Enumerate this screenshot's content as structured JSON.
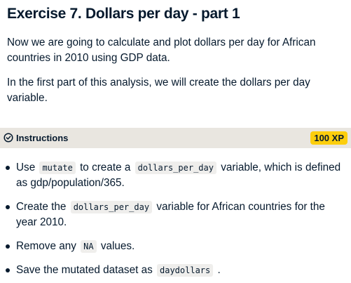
{
  "exercise": {
    "title": "Exercise 7. Dollars per day - part 1",
    "paragraphs": [
      "Now we are going to calculate and plot dollars per day for African countries in 2010 using GDP data.",
      "In the first part of this analysis, we will create the dollars per day variable."
    ]
  },
  "instructions": {
    "icon": "checkmark-circle-icon",
    "label": "Instructions",
    "xp": "100 XP",
    "badge_color": "#fcce0d",
    "bar_color": "#e9e6e0",
    "items": [
      {
        "pre": "Use",
        "code1": "mutate",
        "mid": "to create a",
        "code2": "dollars_per_day",
        "post": "variable, which is defined as gdp/population/365."
      },
      {
        "pre": "Create the",
        "code1": "dollars_per_day",
        "post": "variable for African countries for the year 2010."
      },
      {
        "pre": "Remove any",
        "code1": "NA",
        "post": "values."
      },
      {
        "pre": "Save the mutated dataset as",
        "code1": "daydollars",
        "post": "."
      }
    ]
  }
}
